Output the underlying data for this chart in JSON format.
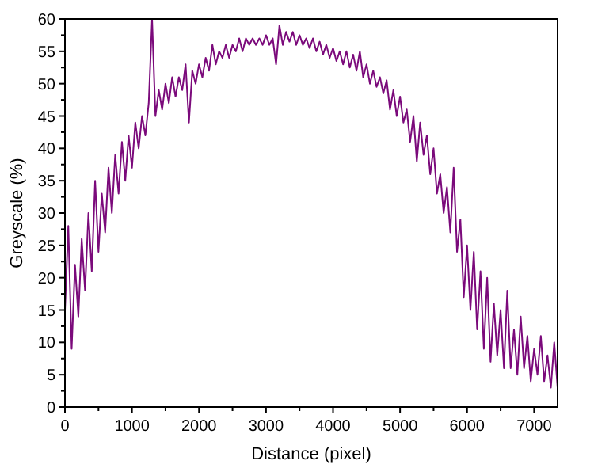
{
  "chart_data": {
    "type": "line",
    "xlabel": "Distance (pixel)",
    "ylabel": "Greyscale (%)",
    "xlim": [
      0,
      7350
    ],
    "ylim": [
      0,
      60
    ],
    "xticks": [
      0,
      {
        "value": 500,
        "label": null
      },
      1000,
      {
        "value": 1500,
        "label": null
      },
      2000,
      {
        "value": 2500,
        "label": null
      },
      3000,
      {
        "value": 3500,
        "label": null
      },
      4000,
      {
        "value": 4500,
        "label": null
      },
      5000,
      {
        "value": 5500,
        "label": null
      },
      6000,
      {
        "value": 6500,
        "label": null
      },
      7000
    ],
    "yticks": [
      0,
      {
        "value": 2.5,
        "label": null
      },
      5,
      {
        "value": 7.5,
        "label": null
      },
      10,
      {
        "value": 12.5,
        "label": null
      },
      15,
      {
        "value": 17.5,
        "label": null
      },
      20,
      {
        "value": 22.5,
        "label": null
      },
      25,
      {
        "value": 27.5,
        "label": null
      },
      30,
      {
        "value": 32.5,
        "label": null
      },
      35,
      {
        "value": 37.5,
        "label": null
      },
      40,
      {
        "value": 42.5,
        "label": null
      },
      45,
      {
        "value": 47.5,
        "label": null
      },
      50,
      {
        "value": 52.5,
        "label": null
      },
      55,
      {
        "value": 57.5,
        "label": null
      },
      60
    ],
    "grid": false,
    "line_style": "solid",
    "marker": "none",
    "x": [
      0,
      50,
      100,
      150,
      200,
      250,
      300,
      350,
      400,
      450,
      500,
      550,
      600,
      650,
      700,
      750,
      800,
      850,
      900,
      950,
      1000,
      1050,
      1100,
      1150,
      1200,
      1250,
      1300,
      1350,
      1400,
      1450,
      1500,
      1550,
      1600,
      1650,
      1700,
      1750,
      1800,
      1850,
      1900,
      1950,
      2000,
      2050,
      2100,
      2150,
      2200,
      2250,
      2300,
      2350,
      2400,
      2450,
      2500,
      2550,
      2600,
      2650,
      2700,
      2750,
      2800,
      2850,
      2900,
      2950,
      3000,
      3050,
      3100,
      3150,
      3200,
      3250,
      3300,
      3350,
      3400,
      3450,
      3500,
      3550,
      3600,
      3650,
      3700,
      3750,
      3800,
      3850,
      3900,
      3950,
      4000,
      4050,
      4100,
      4150,
      4200,
      4250,
      4300,
      4350,
      4400,
      4450,
      4500,
      4550,
      4600,
      4650,
      4700,
      4750,
      4800,
      4850,
      4900,
      4950,
      5000,
      5050,
      5100,
      5150,
      5200,
      5250,
      5300,
      5350,
      5400,
      5450,
      5500,
      5550,
      5600,
      5650,
      5700,
      5750,
      5800,
      5850,
      5900,
      5950,
      6000,
      6050,
      6100,
      6150,
      6200,
      6250,
      6300,
      6350,
      6400,
      6450,
      6500,
      6550,
      6600,
      6650,
      6700,
      6750,
      6800,
      6850,
      6900,
      6950,
      7000,
      7050,
      7100,
      7150,
      7200,
      7250,
      7300,
      7350
    ],
    "series": [
      {
        "color": "#7b0a7b",
        "values": [
          15,
          28,
          9,
          22,
          14,
          26,
          18,
          30,
          21,
          35,
          24,
          33,
          27,
          37,
          30,
          39,
          33,
          41,
          35,
          42,
          37,
          44,
          40,
          45,
          42,
          47,
          60,
          45,
          49,
          46,
          50,
          47,
          51,
          48,
          51,
          49,
          53,
          44,
          52,
          50,
          53,
          51,
          54,
          52,
          56,
          53,
          55,
          54,
          56,
          54,
          56,
          55,
          57,
          55,
          57,
          56,
          57,
          56,
          57,
          56,
          57.5,
          56,
          57,
          53,
          59,
          56,
          58,
          56.5,
          58,
          56,
          57.5,
          56,
          57,
          55.5,
          57,
          55,
          56.5,
          54.5,
          56,
          54,
          55.5,
          53.5,
          55,
          53,
          55,
          52.5,
          54.5,
          52,
          55,
          51,
          53,
          50,
          52,
          49.5,
          51,
          48.5,
          50.5,
          46,
          49,
          45,
          48,
          44,
          46,
          41,
          45,
          38,
          44,
          39,
          42,
          36,
          40,
          33,
          36,
          30,
          34,
          27,
          37,
          24,
          29,
          17,
          25,
          15,
          24,
          12,
          21,
          9,
          20,
          7,
          16,
          8,
          15,
          6,
          18,
          6,
          12,
          5,
          14,
          6,
          11,
          4,
          9,
          5,
          11,
          4,
          8,
          3,
          10,
          3
        ]
      }
    ]
  }
}
